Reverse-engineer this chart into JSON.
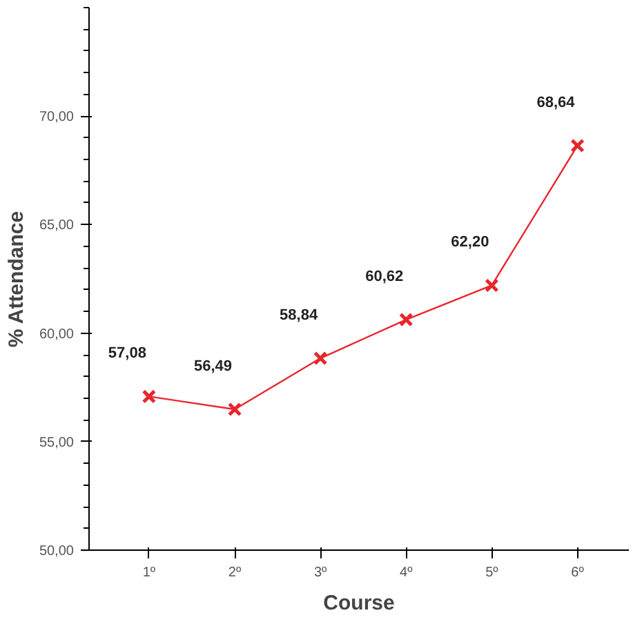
{
  "chart_data": {
    "type": "line",
    "xlabel": "Course",
    "ylabel": "% Attendance",
    "categories": [
      "1º",
      "2º",
      "3º",
      "4º",
      "5º",
      "6º"
    ],
    "series": [
      {
        "color": "#e8262c",
        "values": [
          57.08,
          56.49,
          58.84,
          60.62,
          62.2,
          68.64
        ]
      }
    ],
    "value_labels": [
      "57,08",
      "56,49",
      "58,84",
      "60,62",
      "62,20",
      "68,64"
    ],
    "ylim": [
      50,
      75
    ],
    "yticks": [
      {
        "value": 50,
        "label": "50,00"
      },
      {
        "value": 55,
        "label": "55,00"
      },
      {
        "value": 60,
        "label": "60,00"
      },
      {
        "value": 65,
        "label": "65,00"
      },
      {
        "value": 70,
        "label": "70,00"
      }
    ],
    "grid": false,
    "marker": "cross",
    "line_style": "solid"
  }
}
